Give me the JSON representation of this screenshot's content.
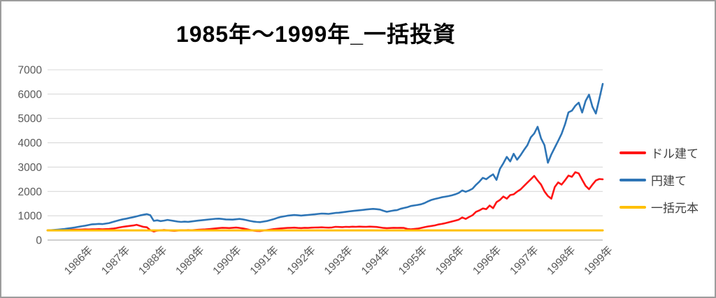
{
  "chart": {
    "title": "1985年～1999年_一括投資",
    "legend": [
      {
        "label": "ドル建て",
        "color": "#ff1414"
      },
      {
        "label": "円建て",
        "color": "#2e75b6"
      },
      {
        "label": "一括元本",
        "color": "#ffc000"
      }
    ]
  },
  "chart_data": {
    "type": "line",
    "title": "1985年～1999年_一括投資",
    "xlabel": "",
    "ylabel": "",
    "ylim": [
      0,
      7000
    ],
    "y_ticks": [
      0,
      1000,
      2000,
      3000,
      4000,
      5000,
      6000,
      7000
    ],
    "grid": "horizontal",
    "grid_color": "#d9d9d9",
    "axis_color": "#bfbfbf",
    "legend_position": "right",
    "x_tick_labels": [
      "1986年",
      "1987年",
      "1988年",
      "1989年",
      "1990年",
      "1991年",
      "1992年",
      "1993年",
      "1994年",
      "1995年",
      "1996年",
      "1996年",
      "1997年",
      "1998年",
      "1999年"
    ],
    "x_unit": "monthly points, 1985–1999",
    "series": [
      {
        "name": "ドル建て",
        "color": "#ff1414",
        "width": 2.6,
        "values": [
          400,
          404,
          400,
          408,
          414,
          420,
          417,
          424,
          430,
          427,
          434,
          440,
          437,
          441,
          446,
          451,
          446,
          450,
          456,
          470,
          490,
          520,
          545,
          565,
          582,
          600,
          628,
          585,
          542,
          524,
          405,
          352,
          390,
          402,
          415,
          400,
          390,
          380,
          394,
          405,
          398,
          410,
          404,
          415,
          424,
          432,
          440,
          450,
          464,
          480,
          494,
          505,
          500,
          494,
          505,
          514,
          500,
          480,
          450,
          420,
          394,
          375,
          370,
          390,
          410,
          430,
          450,
          464,
          478,
          490,
          500,
          506,
          510,
          500,
          494,
          505,
          500,
          510,
          515,
          520,
          525,
          515,
          510,
          520,
          545,
          540,
          535,
          544,
          540,
          550,
          545,
          554,
          549,
          545,
          554,
          549,
          540,
          520,
          500,
          490,
          495,
          504,
          498,
          505,
          500,
          460,
          445,
          455,
          470,
          500,
          530,
          558,
          580,
          602,
          640,
          662,
          690,
          730,
          762,
          800,
          840,
          930,
          870,
          950,
          1020,
          1160,
          1220,
          1300,
          1270,
          1420,
          1310,
          1560,
          1650,
          1790,
          1700,
          1850,
          1880,
          1990,
          2080,
          2220,
          2360,
          2500,
          2640,
          2450,
          2280,
          2000,
          1810,
          1700,
          2180,
          2370,
          2280,
          2460,
          2650,
          2600,
          2790,
          2740,
          2480,
          2230,
          2090,
          2280,
          2450,
          2510,
          2500
        ]
      },
      {
        "name": "円建て",
        "color": "#2e75b6",
        "width": 2.6,
        "values": [
          400,
          408,
          418,
          430,
          444,
          460,
          478,
          498,
          520,
          545,
          570,
          592,
          620,
          648,
          655,
          665,
          658,
          678,
          700,
          742,
          780,
          820,
          856,
          882,
          912,
          940,
          976,
          1012,
          1042,
          1066,
          1020,
          790,
          812,
          780,
          800,
          830,
          806,
          782,
          760,
          746,
          756,
          750,
          766,
          782,
          800,
          816,
          830,
          846,
          862,
          876,
          882,
          866,
          850,
          844,
          840,
          856,
          870,
          850,
          820,
          790,
          762,
          745,
          736,
          760,
          782,
          820,
          862,
          910,
          950,
          976,
          1000,
          1016,
          1030,
          1020,
          1006,
          1020,
          1032,
          1046,
          1060,
          1076,
          1090,
          1084,
          1076,
          1096,
          1116,
          1126,
          1142,
          1160,
          1180,
          1196,
          1210,
          1226,
          1240,
          1256,
          1270,
          1282,
          1270,
          1254,
          1204,
          1162,
          1190,
          1216,
          1232,
          1286,
          1320,
          1352,
          1400,
          1422,
          1446,
          1472,
          1520,
          1590,
          1650,
          1690,
          1722,
          1760,
          1782,
          1806,
          1840,
          1882,
          1940,
          2040,
          1985,
          2040,
          2112,
          2270,
          2400,
          2560,
          2502,
          2612,
          2702,
          2472,
          2930,
          3160,
          3420,
          3232,
          3550,
          3302,
          3482,
          3700,
          3900,
          4220,
          4380,
          4660,
          4180,
          3900,
          3180,
          3520,
          3800,
          4080,
          4370,
          4760,
          5250,
          5320,
          5520,
          5650,
          5240,
          5720,
          5980,
          5480,
          5200,
          5800,
          6420
        ]
      },
      {
        "name": "一括元本",
        "color": "#ffc000",
        "width": 3,
        "values": [
          400,
          400
        ]
      }
    ]
  }
}
